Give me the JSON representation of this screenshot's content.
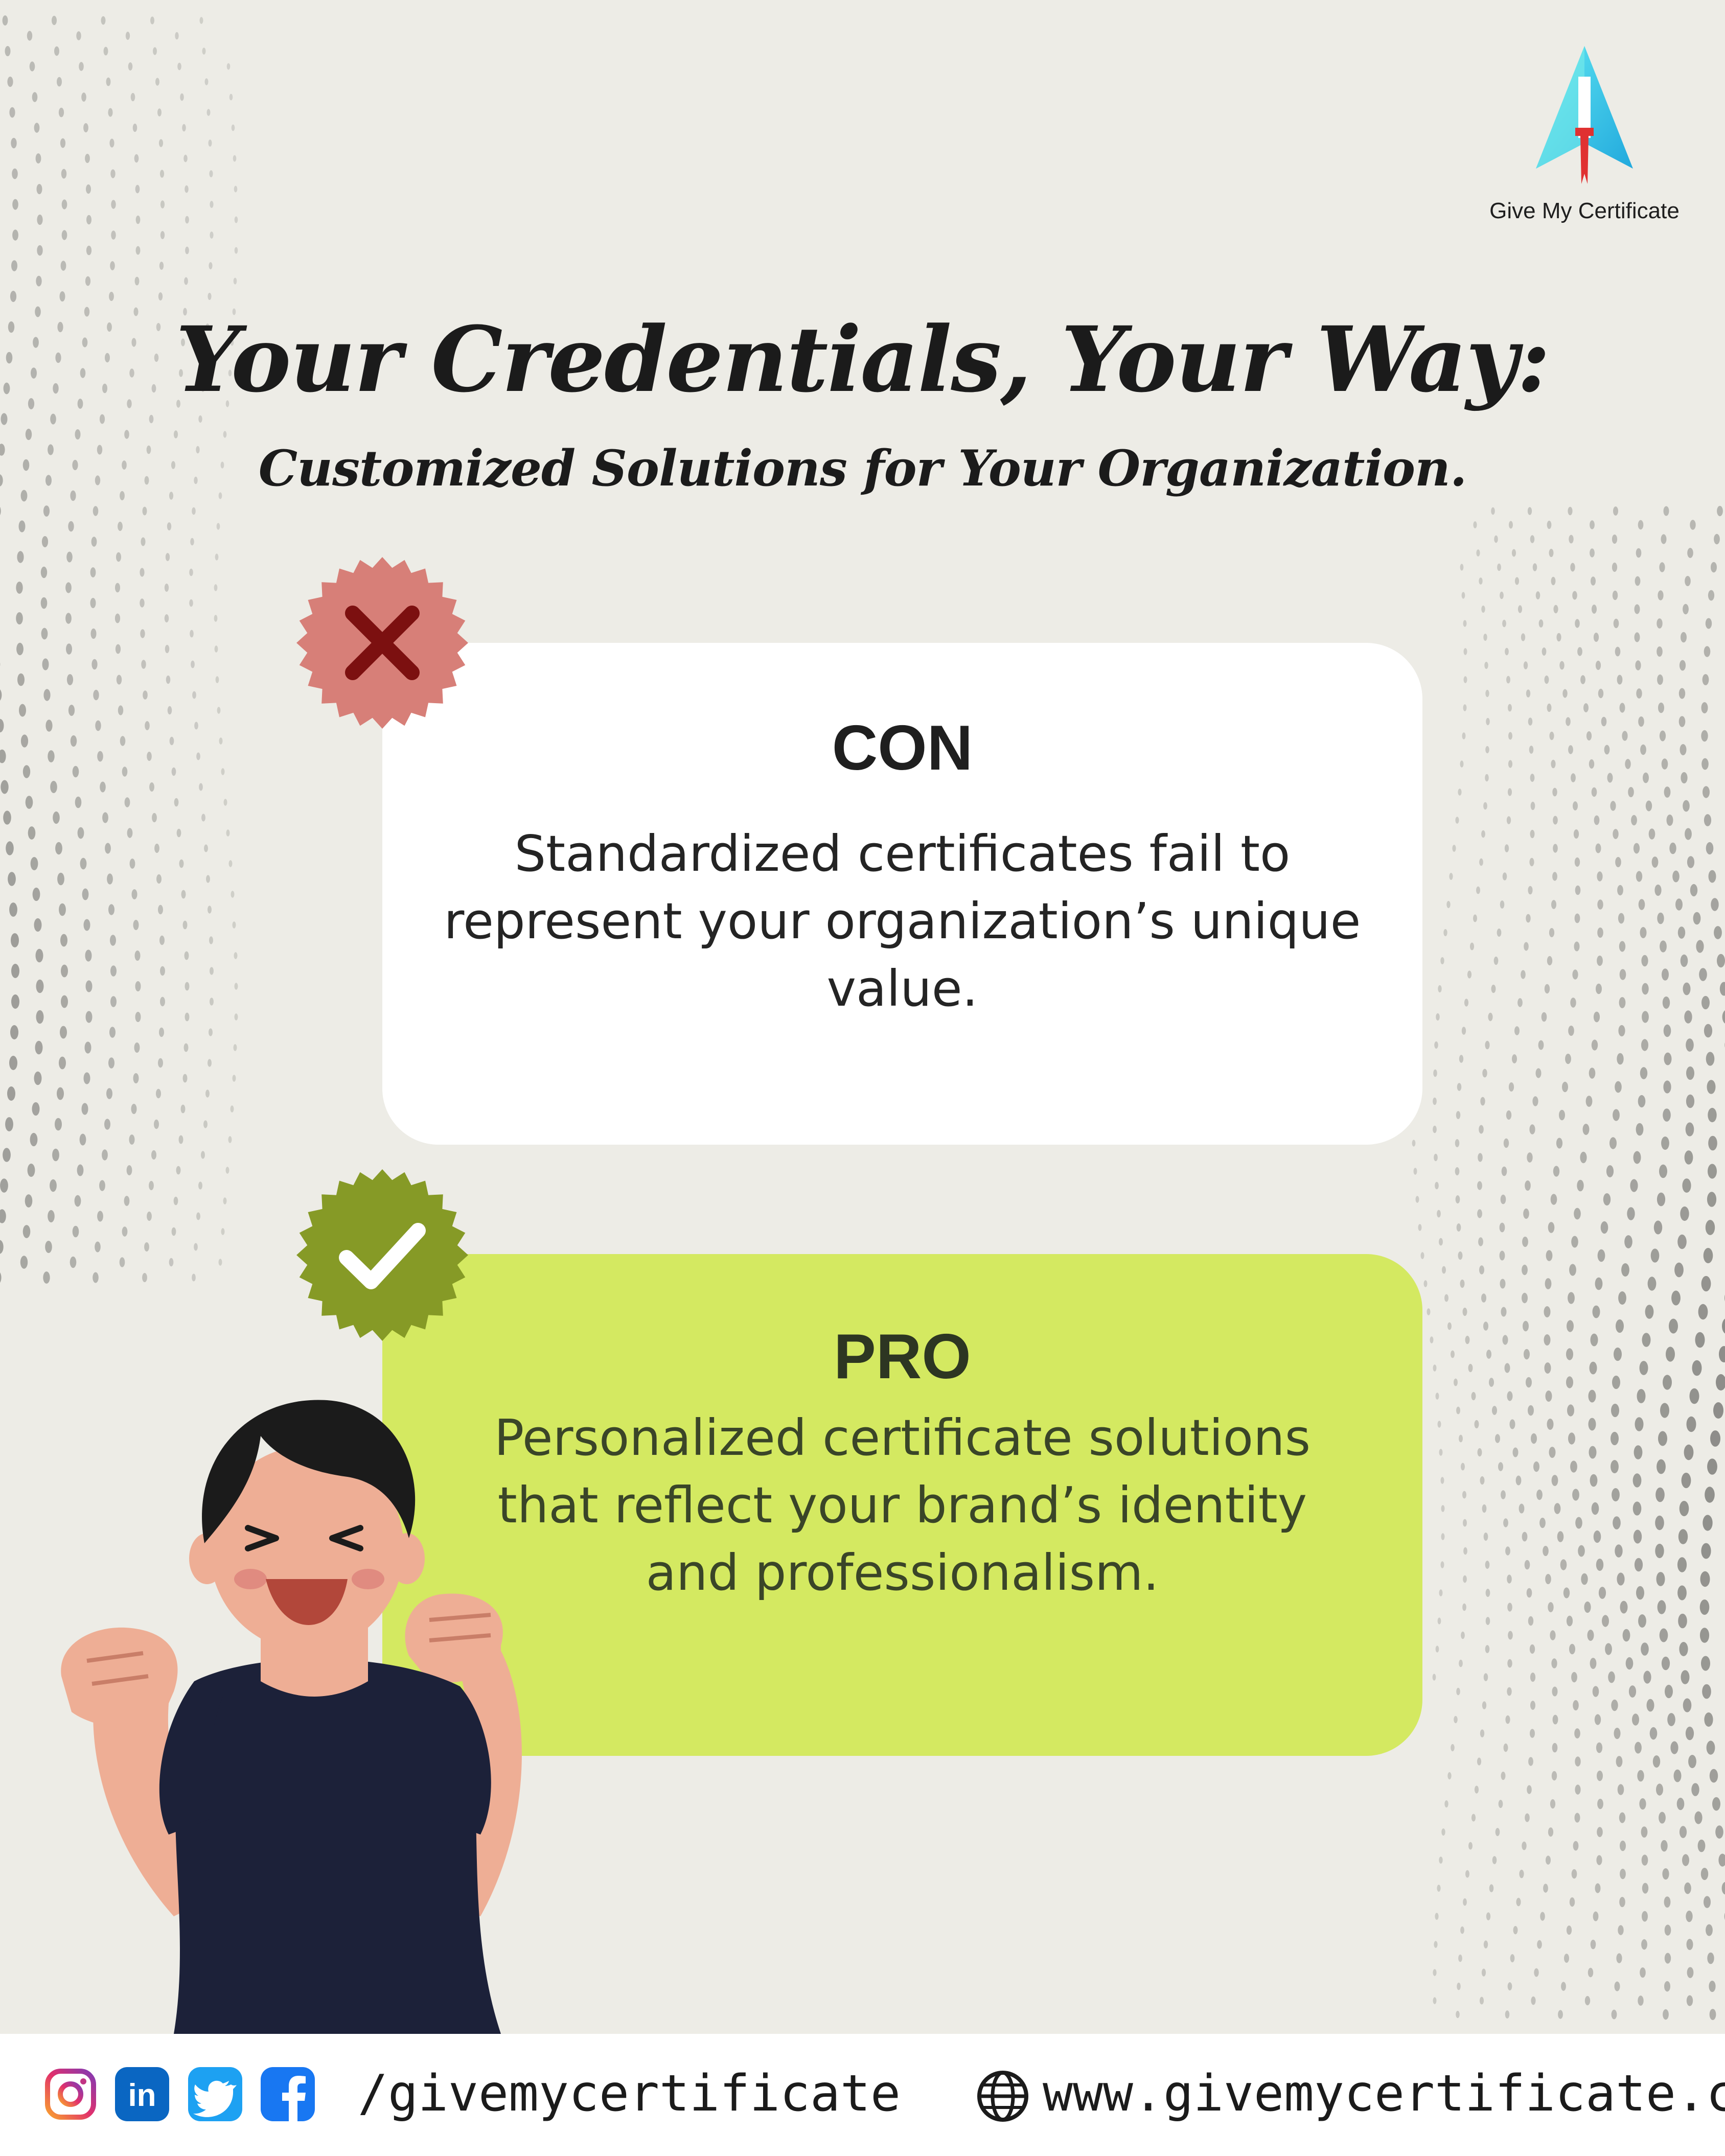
{
  "brand": {
    "name": "Give My Certificate"
  },
  "headline": "Your Credentials, Your Way:",
  "subheadline": "Customized Solutions for Your Organization.",
  "con_card": {
    "title": "CON",
    "body": "Standardized certificates fail to represent your organization’s unique value.",
    "badge_icon": "x-icon"
  },
  "pro_card": {
    "title": "PRO",
    "body": "Personalized certificate solutions that reflect your brand’s identity and professionalism.",
    "badge_icon": "check-icon"
  },
  "footer": {
    "social_icons": [
      "instagram-icon",
      "linkedin-icon",
      "twitter-icon",
      "facebook-icon"
    ],
    "handle": "/givemycertificate",
    "website_icon": "globe-icon",
    "website": "www.givemycertificate.com"
  },
  "colors": {
    "background": "#edece6",
    "con_badge": "#d77f78",
    "con_x": "#7c1010",
    "pro_badge": "#869a26",
    "pro_card": "#d4e961",
    "brand_gradient_start": "#4de0f0",
    "brand_gradient_end": "#2ab8e0",
    "brand_red": "#e03131"
  }
}
